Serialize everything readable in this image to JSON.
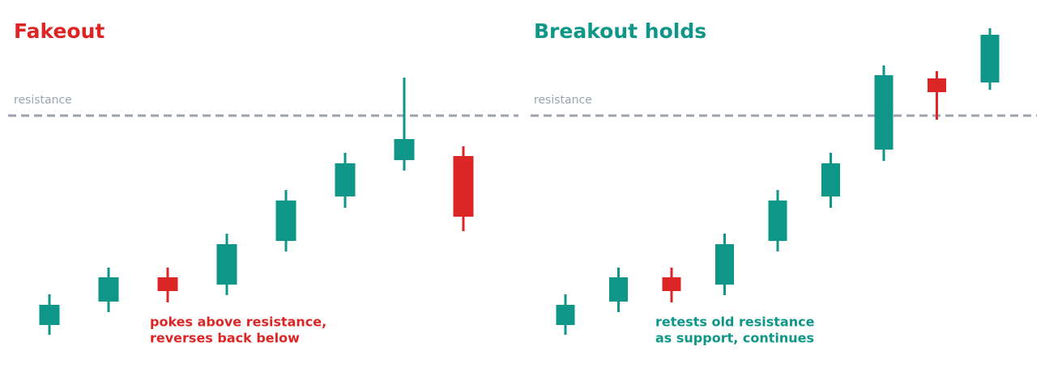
{
  "chart_data": [
    {
      "type": "candlestick",
      "title": "Fakeout",
      "title_color": "#dc2626",
      "resistance_label": "resistance",
      "resistance": 327,
      "resistance_color": "#9ca3af",
      "annotation": [
        "pokes above resistance,",
        "reverses back below"
      ],
      "annotation_color": "#dc2626",
      "up_color": "#0e9688",
      "down_color": "#dc2626",
      "ylim": [
        0,
        470
      ],
      "open": [
        68,
        97,
        127,
        118,
        172,
        227,
        272,
        277
      ],
      "high": [
        106,
        139,
        139,
        181,
        235,
        281,
        374,
        289
      ],
      "low": [
        56,
        84,
        96,
        105,
        159,
        213,
        259,
        184
      ],
      "close": [
        93,
        127,
        110,
        168,
        222,
        268,
        298,
        202
      ]
    },
    {
      "type": "candlestick",
      "title": "Breakout holds",
      "title_color": "#0e9688",
      "resistance_label": "resistance",
      "resistance": 327,
      "resistance_color": "#9ca3af",
      "annotation": [
        "retests old resistance",
        "as support, continues"
      ],
      "annotation_color": "#0e9688",
      "up_color": "#0e9688",
      "down_color": "#dc2626",
      "ylim": [
        0,
        470
      ],
      "open": [
        68,
        97,
        127,
        118,
        172,
        227,
        285,
        373,
        368
      ],
      "high": [
        106,
        139,
        139,
        181,
        235,
        281,
        389,
        382,
        435
      ],
      "low": [
        56,
        84,
        96,
        105,
        159,
        213,
        271,
        322,
        359
      ],
      "close": [
        93,
        127,
        110,
        168,
        222,
        268,
        377,
        356,
        427
      ]
    }
  ]
}
